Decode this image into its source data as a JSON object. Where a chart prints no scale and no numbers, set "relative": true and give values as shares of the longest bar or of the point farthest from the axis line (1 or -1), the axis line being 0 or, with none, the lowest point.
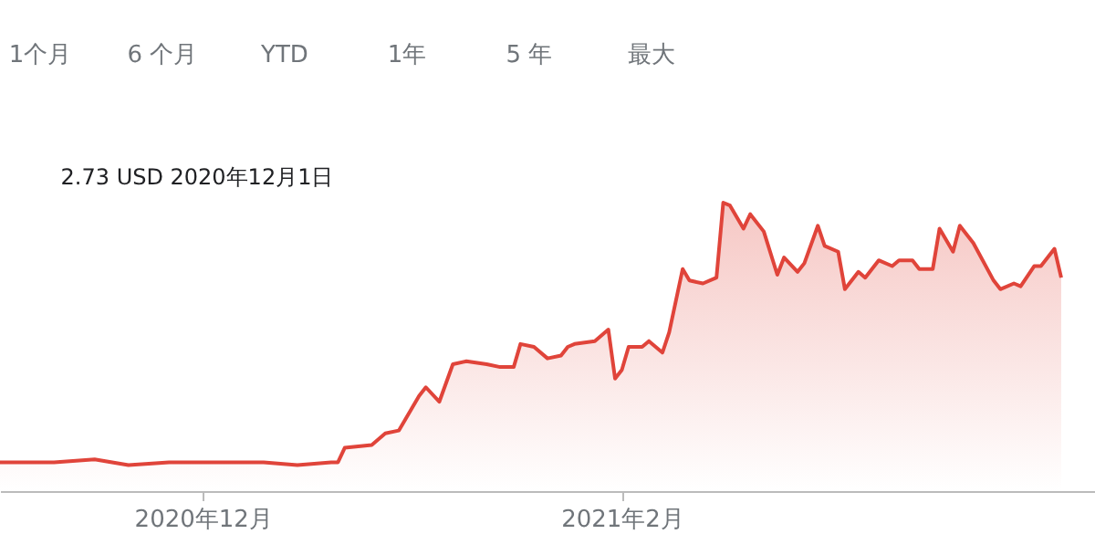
{
  "chart_data": {
    "type": "area",
    "relative": true,
    "x": [
      "2020-11-01",
      "2020-11-09",
      "2020-11-15",
      "2020-11-20",
      "2020-11-26",
      "2020-12-01",
      "2020-12-10",
      "2020-12-15",
      "2020-12-20",
      "2020-12-21",
      "2020-12-22",
      "2020-12-26",
      "2020-12-28",
      "2020-12-30",
      "2021-01-02",
      "2021-01-03",
      "2021-01-05",
      "2021-01-07",
      "2021-01-09",
      "2021-01-12",
      "2021-01-14",
      "2021-01-16",
      "2021-01-17",
      "2021-01-19",
      "2021-01-21",
      "2021-01-23",
      "2021-01-24",
      "2021-01-25",
      "2021-01-28",
      "2021-01-30",
      "2021-01-31",
      "2021-02-01",
      "2021-02-02",
      "2021-02-04",
      "2021-02-05",
      "2021-02-07",
      "2021-02-08",
      "2021-02-10",
      "2021-02-11",
      "2021-02-13",
      "2021-02-15",
      "2021-02-16",
      "2021-02-17",
      "2021-02-19",
      "2021-02-20",
      "2021-02-22",
      "2021-02-24",
      "2021-02-25",
      "2021-02-27",
      "2021-02-28",
      "2021-03-02",
      "2021-03-03",
      "2021-03-05",
      "2021-03-06",
      "2021-03-08",
      "2021-03-09",
      "2021-03-11",
      "2021-03-13",
      "2021-03-14",
      "2021-03-16",
      "2021-03-17",
      "2021-03-19",
      "2021-03-20",
      "2021-03-22",
      "2021-03-23",
      "2021-03-25",
      "2021-03-28",
      "2021-03-29",
      "2021-03-31",
      "2021-04-01",
      "2021-04-03",
      "2021-04-04",
      "2021-04-06",
      "2021-04-07"
    ],
    "series": [
      {
        "color": "#e0443a",
        "values": [
          0.1,
          0.1,
          0.11,
          0.09,
          0.1,
          0.1,
          0.1,
          0.09,
          0.1,
          0.1,
          0.15,
          0.16,
          0.2,
          0.21,
          0.33,
          0.36,
          0.31,
          0.44,
          0.45,
          0.44,
          0.43,
          0.43,
          0.51,
          0.5,
          0.46,
          0.47,
          0.5,
          0.51,
          0.52,
          0.56,
          0.39,
          0.42,
          0.5,
          0.5,
          0.52,
          0.48,
          0.55,
          0.77,
          0.73,
          0.72,
          0.74,
          1.0,
          0.99,
          0.91,
          0.96,
          0.9,
          0.75,
          0.81,
          0.76,
          0.79,
          0.92,
          0.85,
          0.83,
          0.7,
          0.76,
          0.74,
          0.8,
          0.78,
          0.8,
          0.8,
          0.77,
          0.77,
          0.91,
          0.83,
          0.92,
          0.86,
          0.73,
          0.7,
          0.72,
          0.71,
          0.78,
          0.78,
          0.84,
          0.74
        ]
      }
    ],
    "xlim": [
      "2020-11-01",
      "2021-04-12"
    ],
    "xticks": [
      {
        "value": "2020-12-01",
        "label": "2020年12月"
      },
      {
        "value": "2021-02-01",
        "label": "2021年2月"
      }
    ],
    "annotations": [
      "1个月",
      "6 个月",
      "YTD",
      "1年",
      "5 年",
      "最大",
      "2.73 USD  2020年12月1日"
    ]
  }
}
